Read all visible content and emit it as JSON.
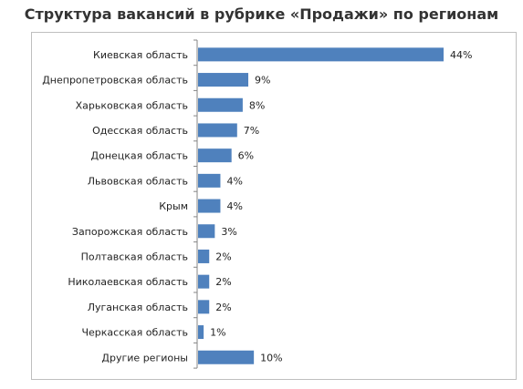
{
  "chart_data": {
    "type": "bar",
    "orientation": "horizontal",
    "title": "Структура вакансий в рубрике «Продажи» по регионам",
    "categories": [
      "Киевская область",
      "Днепропетровская область",
      "Харьковская область",
      "Одесская область",
      "Донецкая область",
      "Львовская область",
      "Крым",
      "Запорожская область",
      "Полтавская область",
      "Николаевская область",
      "Луганская область",
      "Черкасская область",
      "Другие регионы"
    ],
    "values": [
      44,
      9,
      8,
      7,
      6,
      4,
      4,
      3,
      2,
      2,
      2,
      1,
      10
    ],
    "value_labels": [
      "44%",
      "9%",
      "8%",
      "7%",
      "6%",
      "4%",
      "4%",
      "3%",
      "2%",
      "2%",
      "2%",
      "1%",
      "10%"
    ],
    "unit": "%",
    "xlabel": "",
    "ylabel": "",
    "xlim": [
      0,
      44
    ],
    "grid": false,
    "legend": "none",
    "bar_color": "#4f81bd"
  }
}
